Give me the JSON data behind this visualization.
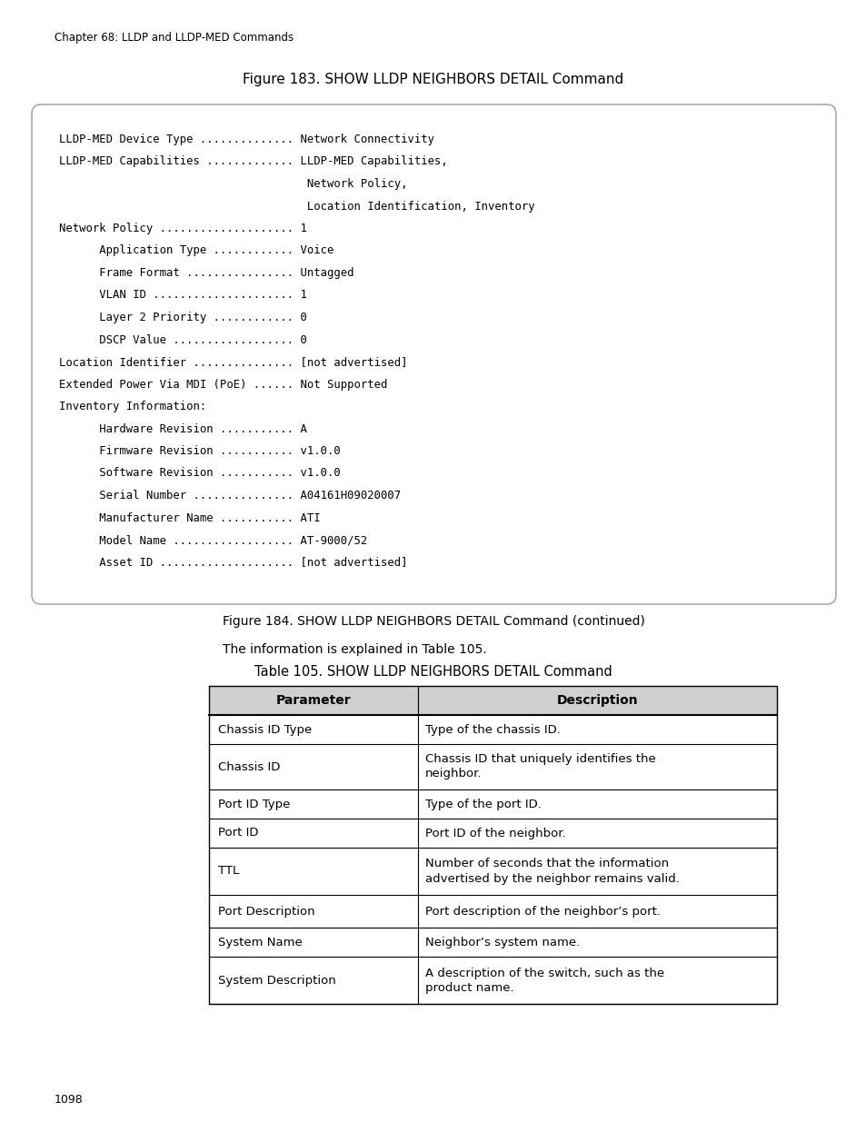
{
  "page_header": "Chapter 68: LLDP and LLDP-MED Commands",
  "fig183_title": "Figure 183. SHOW LLDP NEIGHBORS DETAIL Command",
  "code_block_lines": [
    "LLDP-MED Device Type .............. Network Connectivity",
    "LLDP-MED Capabilities ............. LLDP-MED Capabilities,",
    "                                     Network Policy,",
    "                                     Location Identification, Inventory",
    "Network Policy .................... 1",
    "      Application Type ............ Voice",
    "      Frame Format ................ Untagged",
    "      VLAN ID ..................... 1",
    "      Layer 2 Priority ............ 0",
    "      DSCP Value .................. 0",
    "Location Identifier ............... [not advertised]",
    "Extended Power Via MDI (PoE) ...... Not Supported",
    "Inventory Information:",
    "      Hardware Revision ........... A",
    "      Firmware Revision ........... v1.0.0",
    "      Software Revision ........... v1.0.0",
    "      Serial Number ............... A04161H09020007",
    "      Manufacturer Name ........... ATI",
    "      Model Name .................. AT-9000/52",
    "      Asset ID .................... [not advertised]"
  ],
  "fig184_title": "Figure 184. SHOW LLDP NEIGHBORS DETAIL Command (continued)",
  "info_text": "The information is explained in Table 105.",
  "table_title": "Table 105. SHOW LLDP NEIGHBORS DETAIL Command",
  "table_header": [
    "Parameter",
    "Description"
  ],
  "table_rows": [
    [
      "Chassis ID Type",
      "Type of the chassis ID."
    ],
    [
      "Chassis ID",
      "Chassis ID that uniquely identifies the\nneighbor."
    ],
    [
      "Port ID Type",
      "Type of the port ID."
    ],
    [
      "Port ID",
      "Port ID of the neighbor."
    ],
    [
      "TTL",
      "Number of seconds that the information\nadvertised by the neighbor remains valid."
    ],
    [
      "Port Description",
      "Port description of the neighbor’s port."
    ],
    [
      "System Name",
      "Neighbor’s system name."
    ],
    [
      "System Description",
      "A description of the switch, such as the\nproduct name."
    ]
  ],
  "page_number": "1098",
  "background_color": "#ffffff",
  "code_bg_color": "#ffffff",
  "code_border_color": "#aaaaaa",
  "table_border_color": "#000000",
  "table_header_bg": "#d0d0d0",
  "text_color": "#000000"
}
